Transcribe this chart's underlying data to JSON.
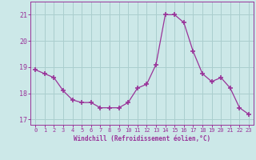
{
  "x": [
    0,
    1,
    2,
    3,
    4,
    5,
    6,
    7,
    8,
    9,
    10,
    11,
    12,
    13,
    14,
    15,
    16,
    17,
    18,
    19,
    20,
    21,
    22,
    23
  ],
  "y": [
    18.9,
    18.75,
    18.6,
    18.1,
    17.75,
    17.65,
    17.65,
    17.45,
    17.45,
    17.45,
    17.65,
    18.2,
    18.35,
    19.1,
    21.0,
    21.0,
    20.7,
    19.6,
    18.75,
    18.45,
    18.6,
    18.2,
    17.45,
    17.2
  ],
  "line_color": "#993399",
  "marker_color": "#993399",
  "bg_color": "#cce8e8",
  "grid_color": "#aacece",
  "xlabel": "Windchill (Refroidissement éolien,°C)",
  "xlabel_color": "#993399",
  "tick_color": "#993399",
  "ylim": [
    16.8,
    21.5
  ],
  "yticks": [
    17,
    18,
    19,
    20,
    21
  ],
  "xticks": [
    0,
    1,
    2,
    3,
    4,
    5,
    6,
    7,
    8,
    9,
    10,
    11,
    12,
    13,
    14,
    15,
    16,
    17,
    18,
    19,
    20,
    21,
    22,
    23
  ],
  "figsize": [
    3.2,
    2.0
  ],
  "dpi": 100
}
